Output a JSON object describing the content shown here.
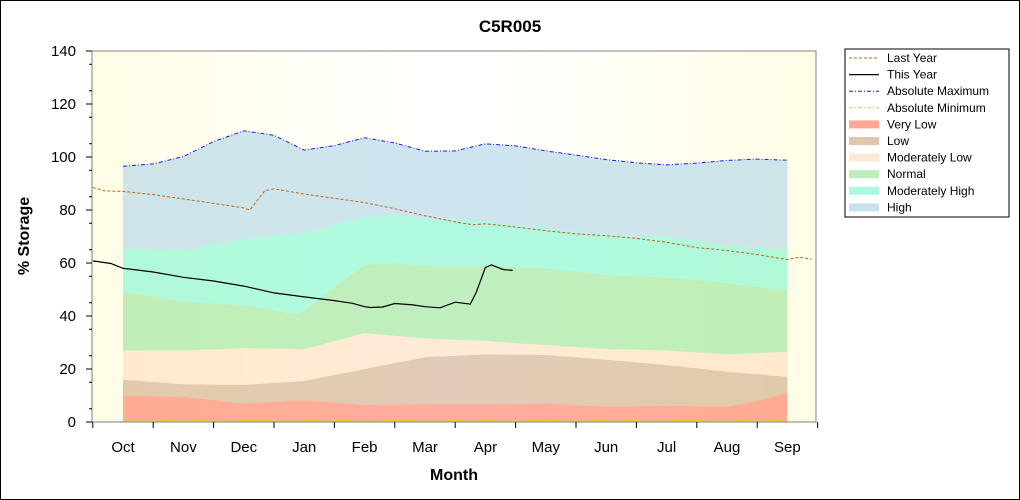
{
  "chart_data": {
    "type": "area",
    "title": "C5R005",
    "xlabel": "Month",
    "ylabel": "% Storage",
    "categories": [
      "Oct",
      "Nov",
      "Dec",
      "Jan",
      "Feb",
      "Mar",
      "Apr",
      "May",
      "Jun",
      "Jul",
      "Aug",
      "Sep"
    ],
    "ylim": [
      0,
      140
    ],
    "yticks": [
      "0",
      "20",
      "40",
      "60",
      "80",
      "100",
      "120",
      "140"
    ],
    "legend_position": "right",
    "series": [
      {
        "name": "Last Year",
        "kind": "line",
        "style": "dashed",
        "color": "#c0641e",
        "points": [
          [
            -0.5,
            88.5
          ],
          [
            -0.3,
            87.2
          ],
          [
            0,
            87
          ],
          [
            0.5,
            85.8
          ],
          [
            1,
            84.2
          ],
          [
            1.5,
            82.5
          ],
          [
            2,
            80.8
          ],
          [
            2.1,
            80
          ],
          [
            2.35,
            87.3
          ],
          [
            2.5,
            88
          ],
          [
            3,
            86
          ],
          [
            3.5,
            84.4
          ],
          [
            4,
            82.8
          ],
          [
            4.5,
            80.5
          ],
          [
            5,
            77.8
          ],
          [
            5.5,
            75.5
          ],
          [
            5.8,
            74.4
          ],
          [
            6,
            74.8
          ],
          [
            6.5,
            73.6
          ],
          [
            7,
            72.2
          ],
          [
            7.5,
            71
          ],
          [
            8,
            70.3
          ],
          [
            8.5,
            69.3
          ],
          [
            9,
            67.8
          ],
          [
            9.5,
            65.8
          ],
          [
            10,
            64.7
          ],
          [
            10.5,
            63.2
          ],
          [
            11,
            61.3
          ],
          [
            11.2,
            62.2
          ],
          [
            11.4,
            61.4
          ]
        ]
      },
      {
        "name": "This Year",
        "kind": "line",
        "style": "solid",
        "color": "#000000",
        "points": [
          [
            -0.5,
            60.8
          ],
          [
            -0.2,
            59.8
          ],
          [
            0,
            58
          ],
          [
            0.5,
            56.6
          ],
          [
            1,
            54.6
          ],
          [
            1.5,
            53.2
          ],
          [
            2,
            51.3
          ],
          [
            2.5,
            48.7
          ],
          [
            3,
            47.2
          ],
          [
            3.5,
            45.8
          ],
          [
            3.8,
            44.8
          ],
          [
            4,
            43.5
          ],
          [
            4.1,
            43.2
          ],
          [
            4.3,
            43.4
          ],
          [
            4.5,
            44.7
          ],
          [
            4.8,
            44.2
          ],
          [
            5,
            43.5
          ],
          [
            5.25,
            43.1
          ],
          [
            5.5,
            45.2
          ],
          [
            5.75,
            44.5
          ],
          [
            5.85,
            49
          ],
          [
            6,
            58.3
          ],
          [
            6.1,
            59.3
          ],
          [
            6.3,
            57.5
          ],
          [
            6.45,
            57.2
          ]
        ]
      },
      {
        "name": "Absolute Maximum",
        "kind": "line",
        "style": "dash-dot",
        "color": "#1a1aff",
        "points": [
          [
            0,
            96.5
          ],
          [
            0.5,
            97.4
          ],
          [
            1,
            100.2
          ],
          [
            1.5,
            105.8
          ],
          [
            2,
            109.9
          ],
          [
            2.5,
            108.2
          ],
          [
            3,
            102.6
          ],
          [
            3.5,
            104.3
          ],
          [
            4,
            107.3
          ],
          [
            4.5,
            105.3
          ],
          [
            5,
            102.2
          ],
          [
            5.5,
            102.3
          ],
          [
            6,
            105
          ],
          [
            6.5,
            104.2
          ],
          [
            7,
            102.3
          ],
          [
            7.5,
            100.7
          ],
          [
            8,
            99
          ],
          [
            8.5,
            97.8
          ],
          [
            9,
            97
          ],
          [
            9.5,
            97.7
          ],
          [
            10,
            98.7
          ],
          [
            10.5,
            99.2
          ],
          [
            11,
            98.8
          ]
        ]
      },
      {
        "name": "Absolute Minimum",
        "kind": "line",
        "style": "dash-dot",
        "color": "#e6d600",
        "points": [
          [
            0,
            0.5
          ],
          [
            11,
            0.5
          ]
        ]
      },
      {
        "name": "Very Low",
        "kind": "band",
        "color": "#ff6a4d",
        "upper": [
          [
            0,
            10
          ],
          [
            1,
            9.5
          ],
          [
            2,
            7
          ],
          [
            3,
            8.3
          ],
          [
            4,
            6.5
          ],
          [
            5,
            6.8
          ],
          [
            6,
            6.8
          ],
          [
            7,
            7
          ],
          [
            8,
            5.8
          ],
          [
            9,
            6.2
          ],
          [
            10,
            5.8
          ],
          [
            10.5,
            8
          ],
          [
            11,
            11
          ]
        ],
        "lower": [
          [
            0,
            0
          ],
          [
            11,
            0
          ]
        ]
      },
      {
        "name": "Low",
        "kind": "band",
        "color": "#c8a07a",
        "upper": [
          [
            0,
            16
          ],
          [
            1,
            14.2
          ],
          [
            2,
            14
          ],
          [
            3,
            15.5
          ],
          [
            4,
            20
          ],
          [
            5,
            24.5
          ],
          [
            6,
            25.5
          ],
          [
            7,
            25.3
          ],
          [
            8,
            23.5
          ],
          [
            9,
            21.5
          ],
          [
            10,
            19
          ],
          [
            11,
            17
          ]
        ],
        "lower": "Very Low"
      },
      {
        "name": "Moderately Low",
        "kind": "band",
        "color": "#ffd9b8",
        "upper": [
          [
            0,
            27
          ],
          [
            1,
            27
          ],
          [
            2,
            27.8
          ],
          [
            3,
            27.5
          ],
          [
            4,
            33.5
          ],
          [
            5,
            31.5
          ],
          [
            6,
            30.6
          ],
          [
            7,
            29
          ],
          [
            8,
            27.5
          ],
          [
            9,
            27
          ],
          [
            10,
            25.5
          ],
          [
            11,
            26.5
          ]
        ],
        "lower": "Low"
      },
      {
        "name": "Normal",
        "kind": "band",
        "color": "#8de28d",
        "upper": [
          [
            0,
            49
          ],
          [
            1,
            45.5
          ],
          [
            2,
            44
          ],
          [
            2.5,
            42
          ],
          [
            2.85,
            40.7
          ],
          [
            3,
            42
          ],
          [
            3.5,
            51
          ],
          [
            4,
            59.3
          ],
          [
            4.5,
            60
          ],
          [
            5,
            59
          ],
          [
            6,
            59
          ],
          [
            7,
            58
          ],
          [
            8,
            55.5
          ],
          [
            9,
            54.5
          ],
          [
            10,
            52.5
          ],
          [
            11,
            49.5
          ]
        ],
        "lower": "Moderately Low"
      },
      {
        "name": "Moderately High",
        "kind": "band",
        "color": "#6ff5cc",
        "upper": [
          [
            0,
            65.5
          ],
          [
            1,
            64.7
          ],
          [
            2,
            69
          ],
          [
            3,
            71.5
          ],
          [
            4,
            77.3
          ],
          [
            4.5,
            78
          ],
          [
            5,
            77
          ],
          [
            6,
            75.8
          ],
          [
            7,
            73
          ],
          [
            8,
            70.5
          ],
          [
            9,
            70
          ],
          [
            10,
            66.5
          ],
          [
            11,
            65
          ]
        ],
        "lower": "Normal"
      },
      {
        "name": "High",
        "kind": "band",
        "color": "#a5cfe6",
        "upper": "Absolute Maximum",
        "lower": "Moderately High"
      }
    ]
  }
}
